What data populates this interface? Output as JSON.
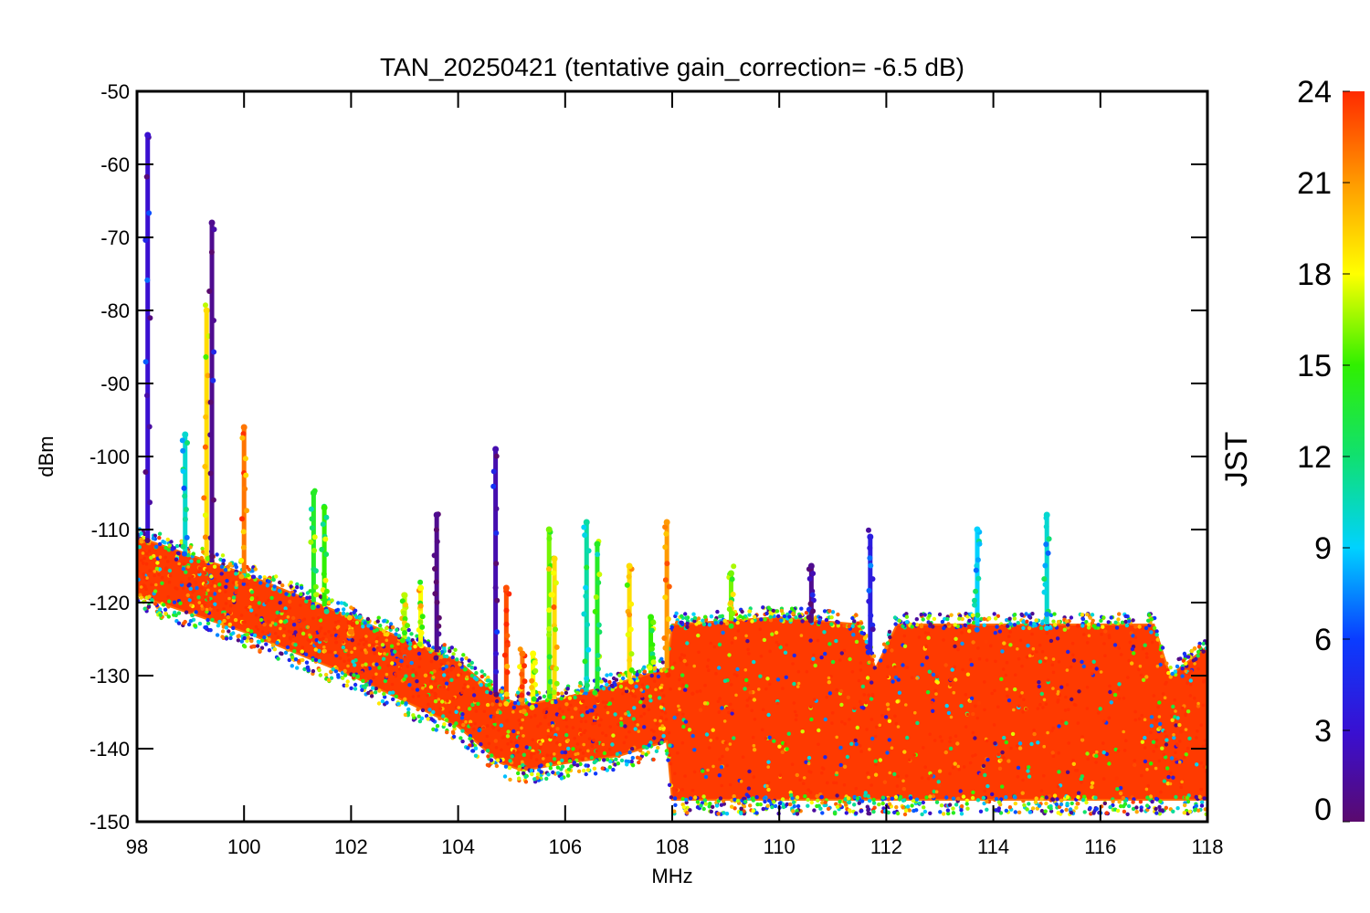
{
  "chart_data": {
    "type": "scatter",
    "title": "TAN_20250421 (tentative gain_correction= -6.5 dB)",
    "xlabel": "MHz",
    "ylabel": "dBm",
    "xlim": [
      98,
      118
    ],
    "ylim": [
      -150,
      -50
    ],
    "x_ticks": [
      "98",
      "100",
      "102",
      "104",
      "106",
      "108",
      "110",
      "112",
      "114",
      "116",
      "118"
    ],
    "y_ticks": [
      "-50",
      "-60",
      "-70",
      "-80",
      "-90",
      "-100",
      "-110",
      "-120",
      "-130",
      "-140",
      "-150"
    ],
    "grid": false,
    "colorbar": {
      "label": "JST",
      "range": [
        0,
        24
      ],
      "ticks": [
        "0",
        "3",
        "6",
        "9",
        "12",
        "15",
        "18",
        "21",
        "24"
      ],
      "colormap": "rainbow (purple-blue-cyan-green-yellow-orange-red)"
    },
    "noise_floor_envelope": [
      {
        "x": 98.0,
        "upper": -111,
        "lower": -119
      },
      {
        "x": 100.0,
        "upper": -116,
        "lower": -124
      },
      {
        "x": 102.0,
        "upper": -122,
        "lower": -130
      },
      {
        "x": 104.0,
        "upper": -128,
        "lower": -137
      },
      {
        "x": 104.8,
        "upper": -133,
        "lower": -142
      },
      {
        "x": 105.2,
        "upper": -134,
        "lower": -143
      },
      {
        "x": 106.0,
        "upper": -133,
        "lower": -142
      },
      {
        "x": 107.0,
        "upper": -131,
        "lower": -141
      },
      {
        "x": 107.9,
        "upper": -129,
        "lower": -139
      },
      {
        "x": 108.0,
        "upper": -123,
        "lower": -147
      },
      {
        "x": 110.0,
        "upper": -122,
        "lower": -147
      },
      {
        "x": 111.5,
        "upper": -123,
        "lower": -147
      },
      {
        "x": 111.8,
        "upper": -129,
        "lower": -147
      },
      {
        "x": 112.2,
        "upper": -123,
        "lower": -147
      },
      {
        "x": 117.0,
        "upper": -123,
        "lower": -147
      },
      {
        "x": 117.3,
        "upper": -130,
        "lower": -147
      },
      {
        "x": 118.0,
        "upper": -126,
        "lower": -147
      }
    ],
    "peaks": [
      {
        "x": 98.2,
        "top": -56,
        "jst": 3
      },
      {
        "x": 99.3,
        "top": -80,
        "jst": 19
      },
      {
        "x": 99.4,
        "top": -68,
        "jst": 1
      },
      {
        "x": 98.9,
        "top": -97,
        "jst": 10
      },
      {
        "x": 100.0,
        "top": -96,
        "jst": 22
      },
      {
        "x": 101.3,
        "top": -105,
        "jst": 14
      },
      {
        "x": 101.5,
        "top": -107,
        "jst": 15
      },
      {
        "x": 102.0,
        "top": -124,
        "jst": 22
      },
      {
        "x": 103.0,
        "top": -119,
        "jst": 17
      },
      {
        "x": 103.3,
        "top": -118,
        "jst": 18
      },
      {
        "x": 103.6,
        "top": -108,
        "jst": 1
      },
      {
        "x": 104.7,
        "top": -99,
        "jst": 2
      },
      {
        "x": 104.9,
        "top": -118,
        "jst": 23
      },
      {
        "x": 105.2,
        "top": -127,
        "jst": 22
      },
      {
        "x": 105.4,
        "top": -127,
        "jst": 18
      },
      {
        "x": 105.7,
        "top": -110,
        "jst": 16
      },
      {
        "x": 105.8,
        "top": -114,
        "jst": 19
      },
      {
        "x": 106.4,
        "top": -109,
        "jst": 11
      },
      {
        "x": 106.6,
        "top": -112,
        "jst": 14
      },
      {
        "x": 107.2,
        "top": -115,
        "jst": 19
      },
      {
        "x": 107.6,
        "top": -122,
        "jst": 15
      },
      {
        "x": 107.9,
        "top": -109,
        "jst": 21
      },
      {
        "x": 109.1,
        "top": -116,
        "jst": 16
      },
      {
        "x": 110.6,
        "top": -115,
        "jst": 1
      },
      {
        "x": 111.7,
        "top": -111,
        "jst": 4
      },
      {
        "x": 113.7,
        "top": -110,
        "jst": 9
      },
      {
        "x": 115.0,
        "top": -108,
        "jst": 10
      }
    ]
  }
}
